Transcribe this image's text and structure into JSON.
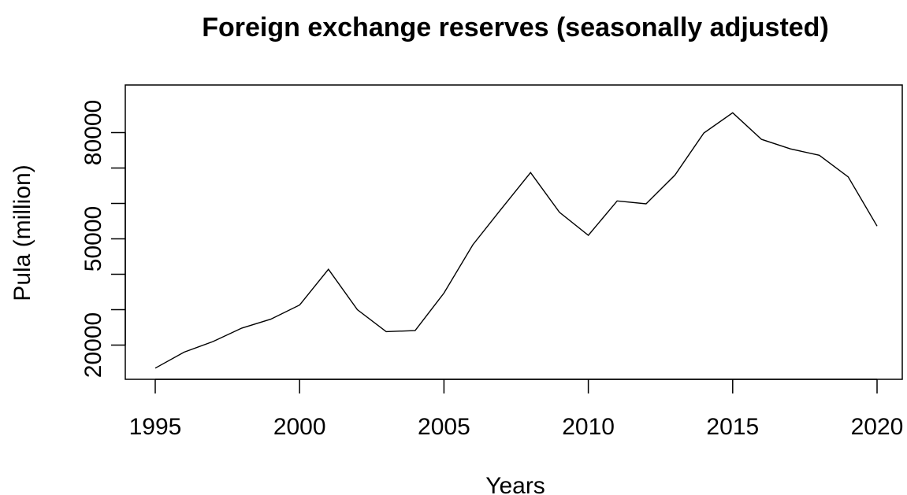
{
  "chart_data": {
    "type": "line",
    "title": "Foreign exchange reserves (seasonally adjusted)",
    "xlabel": "Years",
    "ylabel": "Pula (million)",
    "xlim": [
      1995,
      2020
    ],
    "ylim": [
      13000,
      91000
    ],
    "grid": false,
    "x_ticks": [
      1995,
      2000,
      2005,
      2010,
      2015,
      2020
    ],
    "x_tick_labels": [
      "1995",
      "2000",
      "2005",
      "2010",
      "2015",
      "2020"
    ],
    "y_ticks": [
      20000,
      30000,
      40000,
      50000,
      60000,
      70000,
      80000
    ],
    "y_tick_labels": [
      "20000",
      "",
      "",
      "50000",
      "",
      "",
      "80000"
    ],
    "x": [
      1995,
      1996,
      1997,
      1998,
      1999,
      2000,
      2001,
      2002,
      2003,
      2004,
      2005,
      2006,
      2007,
      2008,
      2009,
      2010,
      2011,
      2012,
      2013,
      2014,
      2015,
      2016,
      2017,
      2018,
      2019,
      2020
    ],
    "y": [
      13500,
      18000,
      21000,
      24800,
      27300,
      31300,
      41400,
      30000,
      23800,
      24100,
      34700,
      48300,
      58600,
      68700,
      57500,
      51000,
      60700,
      59900,
      68000,
      79900,
      85600,
      78100,
      75400,
      73600,
      67500,
      53600
    ]
  },
  "colors": {
    "line": "#000000",
    "background": "#ffffff"
  }
}
